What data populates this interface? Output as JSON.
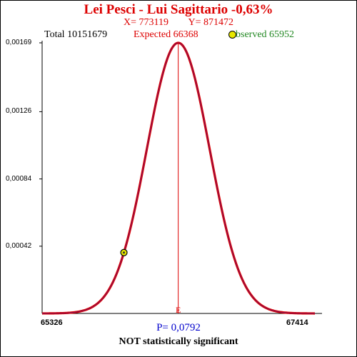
{
  "colors": {
    "title": "#dd0000",
    "xy": "#dd0000",
    "total": "#000000",
    "expected": "#dd0000",
    "observed": "#228822",
    "curve": "#dd0000",
    "curve_inner": "#2222aa",
    "axis": "#000000",
    "pvalue": "#0000cc",
    "marker_fill": "#e8e800"
  },
  "header": {
    "title": "Lei Pesci - Lui Sagittario  -0,63%",
    "x_text": "X= 773119",
    "y_text": "Y= 871472",
    "total_text": "Total  10151679",
    "expected_text": "Expected  66368",
    "observed_text": "bserved  65952"
  },
  "footer": {
    "p_text": "P= 0,0792",
    "verdict": "NOT statistically significant"
  },
  "chart_data": {
    "type": "line",
    "title": "Lei Pesci - Lui Sagittario  -0,63%",
    "xlim": [
      65326,
      67414
    ],
    "ylim": [
      0,
      0.00169
    ],
    "x_tick_labels": [
      "65326",
      "67414"
    ],
    "y_tick_labels": [
      "0,00042",
      "0,00084",
      "0,00126",
      "0,00169"
    ],
    "y_tick_values": [
      0.00042,
      0.00084,
      0.00126,
      0.00169
    ],
    "expected": 66368,
    "expected_label": "E",
    "observed": 65952,
    "observed_density": 0.00038,
    "peak_density": 0.00169,
    "grid": false
  }
}
